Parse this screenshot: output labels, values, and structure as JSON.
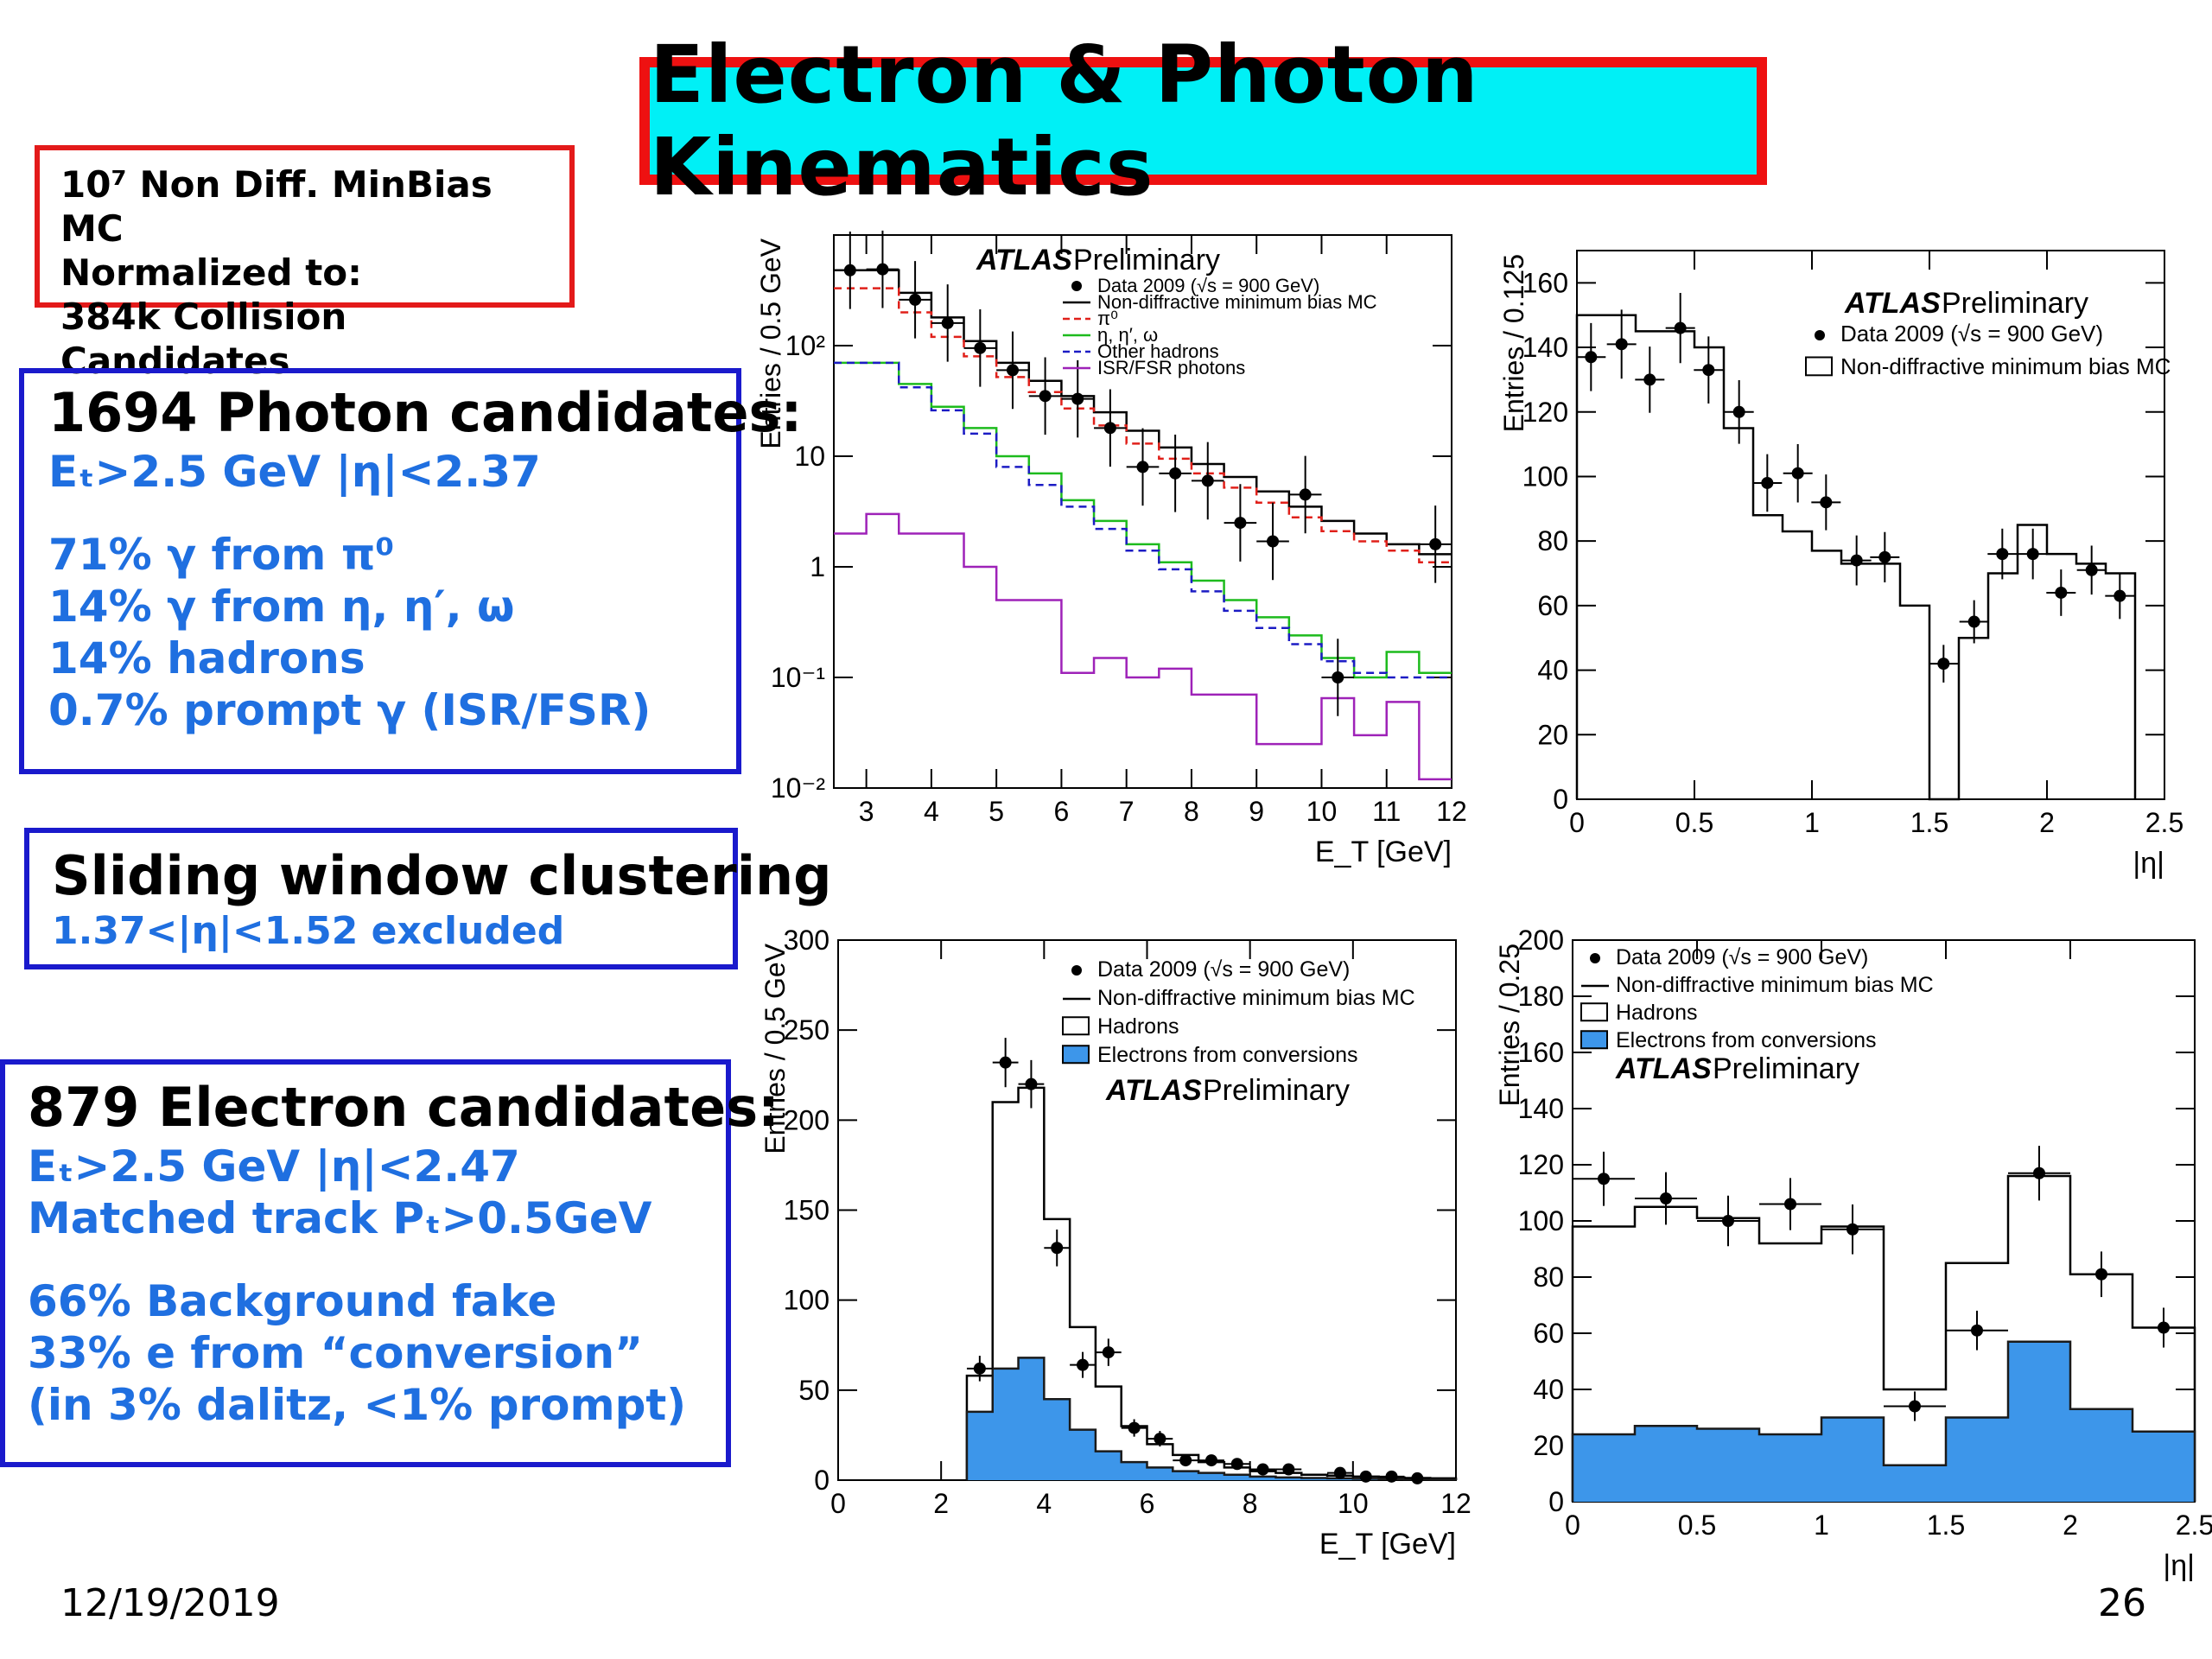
{
  "slide": {
    "title": "Electron & Photon Kinematics",
    "mc_note": [
      "10⁷ Non Diff. MinBias MC",
      "Normalized to:",
      "384k Collision Candidates"
    ],
    "photon_box": {
      "heading": "1694 Photon candidates:",
      "cut": "Eₜ>2.5 GeV |η|<2.37",
      "lines": [
        "71% γ from π⁰",
        "14% γ from η, η′, ω",
        "14% hadrons",
        "0.7% prompt γ (ISR/FSR)"
      ]
    },
    "sliding_box": {
      "heading": "Sliding window clustering",
      "note": "1.37<|η|<1.52 excluded"
    },
    "electron_box": {
      "heading": "879 Electron candidates:",
      "cut": "Eₜ>2.5 GeV |η|<2.47",
      "track": "Matched track Pₜ>0.5GeV",
      "lines": [
        "66% Background fake",
        "33% e from “conversion”",
        "(in 3% dalitz, <1% prompt)"
      ]
    },
    "date": "12/19/2019",
    "page_number": "26"
  },
  "colors": {
    "title_bg": "#00f0f6",
    "title_border": "#ee1111",
    "mc_border": "#e31a1a",
    "box_border": "#1a1acc",
    "blue_text": "#1f6fe0",
    "fill_conversions": "#3d96ea",
    "pi0": "#e0201a",
    "eta": "#1dbb1d",
    "other_hadrons": "#1c1cc4",
    "isr_fsr": "#9e22b8"
  },
  "chart_data": [
    {
      "id": "photon_et",
      "type": "line",
      "xlabel": "E_T [GeV]",
      "ylabel": "Entries / 0.5 GeV",
      "xlim": [
        2.5,
        12
      ],
      "ylim": [
        0.01,
        1000
      ],
      "ylog": true,
      "xticks": [
        "3",
        "4",
        "5",
        "6",
        "7",
        "8",
        "9",
        "10",
        "11",
        "12"
      ],
      "yticks": [
        "10⁻²",
        "10⁻¹",
        "1",
        "10",
        "10²"
      ],
      "annotation": [
        "ATLAS",
        "Preliminary"
      ],
      "legend": [
        "Data 2009 (√s = 900 GeV)",
        "Non-diffractive minimum bias MC",
        "π⁰",
        "η, η′, ω",
        "Other hadrons",
        "ISR/FSR photons"
      ],
      "bin_edges": [
        2.5,
        3,
        3.5,
        4,
        4.5,
        5,
        5.5,
        6,
        6.5,
        7,
        7.5,
        8,
        8.5,
        9,
        9.5,
        10,
        10.5,
        11,
        11.5,
        12
      ],
      "series": [
        {
          "name": "Non-diffractive minimum bias MC",
          "color": "#000000",
          "values": [
            480,
            480,
            300,
            180,
            110,
            70,
            48,
            35,
            25,
            17,
            12,
            8.5,
            6.5,
            4.8,
            3.5,
            2.6,
            2,
            1.6,
            1.3
          ]
        },
        {
          "name": "π⁰",
          "color": "#e0201a",
          "values": [
            330,
            330,
            200,
            120,
            80,
            52,
            38,
            27,
            19,
            13,
            9.5,
            7,
            5.2,
            3.8,
            2.8,
            2.1,
            1.7,
            1.4,
            1.1
          ]
        },
        {
          "name": "η, η′, ω",
          "color": "#1dbb1d",
          "values": [
            70,
            70,
            45,
            28,
            18,
            10,
            7,
            4,
            2.6,
            1.6,
            1.1,
            0.75,
            0.5,
            0.35,
            0.24,
            0.15,
            0.1,
            0.17,
            0.11
          ]
        },
        {
          "name": "Other hadrons",
          "color": "#1c1cc4",
          "values": [
            70,
            70,
            42,
            26,
            16,
            8,
            5.5,
            3.5,
            2.2,
            1.4,
            0.95,
            0.6,
            0.4,
            0.28,
            0.2,
            0.14,
            0.11,
            0.1,
            0.1
          ]
        },
        {
          "name": "ISR/FSR photons",
          "color": "#9e22b8",
          "values": [
            2,
            3,
            2,
            2,
            1,
            0.5,
            0.5,
            0.11,
            0.15,
            0.1,
            0.12,
            0.07,
            0.07,
            0.025,
            0.025,
            0.065,
            0.03,
            0.06,
            0.012
          ]
        }
      ],
      "data_points": {
        "x": [
          2.75,
          3.25,
          3.75,
          4.25,
          4.75,
          5.25,
          5.75,
          6.25,
          6.75,
          7.25,
          7.75,
          8.25,
          8.75,
          9.25,
          9.75,
          10.25,
          11.75
        ],
        "y": [
          480,
          490,
          260,
          160,
          95,
          60,
          35,
          33,
          18,
          8,
          7,
          6,
          2.5,
          1.7,
          4.5,
          0.1,
          1.6
        ]
      }
    },
    {
      "id": "photon_eta",
      "type": "line",
      "xlabel": "|η|",
      "ylabel": "Entries / 0.125",
      "xlim": [
        0,
        2.5
      ],
      "ylim": [
        0,
        170
      ],
      "xticks": [
        "0",
        "0.5",
        "1",
        "1.5",
        "2",
        "2.5"
      ],
      "yticks": [
        "0",
        "20",
        "40",
        "60",
        "80",
        "100",
        "120",
        "140",
        "160"
      ],
      "annotation": [
        "ATLAS",
        "Preliminary"
      ],
      "legend": [
        "Data 2009 (√s = 900 GeV)",
        "Non-diffractive minimum bias MC"
      ],
      "bin_edges": [
        0,
        0.125,
        0.25,
        0.375,
        0.5,
        0.625,
        0.75,
        0.875,
        1,
        1.125,
        1.25,
        1.375,
        1.5,
        1.625,
        1.75,
        1.875,
        2,
        2.125,
        2.25,
        2.375
      ],
      "series": [
        {
          "name": "Non-diffractive minimum bias MC",
          "color": "#000000",
          "values": [
            150,
            150,
            145,
            145,
            140,
            115,
            88,
            83,
            77,
            73,
            73,
            60,
            0,
            50,
            70,
            85,
            76,
            73,
            70
          ]
        }
      ],
      "data_points": {
        "x": [
          0.06,
          0.19,
          0.31,
          0.44,
          0.56,
          0.69,
          0.81,
          0.94,
          1.06,
          1.19,
          1.31,
          1.56,
          1.69,
          1.81,
          1.94,
          2.06,
          2.19,
          2.31
        ],
        "y": [
          137,
          141,
          130,
          146,
          133,
          120,
          98,
          101,
          92,
          74,
          75,
          42,
          55,
          76,
          76,
          64,
          71,
          63
        ]
      }
    },
    {
      "id": "electron_et",
      "type": "line",
      "xlabel": "E_T [GeV]",
      "ylabel": "Entries / 0.5 GeV",
      "xlim": [
        0,
        12
      ],
      "ylim": [
        0,
        300
      ],
      "xticks": [
        "0",
        "2",
        "4",
        "6",
        "8",
        "10",
        "12"
      ],
      "yticks": [
        "0",
        "50",
        "100",
        "150",
        "200",
        "250",
        "300"
      ],
      "annotation": [
        "ATLAS",
        "Preliminary"
      ],
      "legend": [
        "Data 2009 (√s = 900 GeV)",
        "Non-diffractive minimum bias MC",
        "Hadrons",
        "Electrons from conversions"
      ],
      "bin_edges": [
        2.5,
        3,
        3.5,
        4,
        4.5,
        5,
        5.5,
        6,
        6.5,
        7,
        7.5,
        8,
        8.5,
        9,
        9.5,
        10,
        10.5,
        11,
        11.5,
        12
      ],
      "series": [
        {
          "name": "Non-diffractive minimum bias MC",
          "color": "#000000",
          "values": [
            58,
            210,
            218,
            145,
            85,
            52,
            30,
            20,
            14,
            10,
            7,
            5,
            4,
            3,
            2.5,
            2,
            1.5,
            1.2,
            1
          ]
        },
        {
          "name": "Electrons from conversions",
          "color": "#3d96ea",
          "values": [
            38,
            62,
            68,
            45,
            28,
            16,
            10,
            7,
            5,
            4,
            3,
            2,
            1.5,
            1.2,
            1,
            0.8,
            0.6,
            0.5,
            0.4
          ]
        }
      ],
      "data_points": {
        "x": [
          2.75,
          3.25,
          3.75,
          4.25,
          4.75,
          5.25,
          5.75,
          6.25,
          6.75,
          7.25,
          7.75,
          8.25,
          8.75,
          9.75,
          10.25,
          10.75,
          11.25
        ],
        "y": [
          62,
          232,
          220,
          129,
          64,
          71,
          29,
          23,
          11,
          11,
          9,
          6,
          6,
          4,
          2,
          2,
          1
        ]
      }
    },
    {
      "id": "electron_eta",
      "type": "line",
      "xlabel": "|η|",
      "ylabel": "Entries / 0.25",
      "xlim": [
        0,
        2.5
      ],
      "ylim": [
        0,
        200
      ],
      "xticks": [
        "0",
        "0.5",
        "1",
        "1.5",
        "2",
        "2.5"
      ],
      "yticks": [
        "0",
        "20",
        "40",
        "60",
        "80",
        "100",
        "120",
        "140",
        "160",
        "180",
        "200"
      ],
      "annotation": [
        "ATLAS",
        "Preliminary"
      ],
      "legend": [
        "Data 2009 (√s = 900 GeV)",
        "Non-diffractive minimum bias MC",
        "Hadrons",
        "Electrons from conversions"
      ],
      "bin_edges": [
        0,
        0.25,
        0.5,
        0.75,
        1,
        1.25,
        1.5,
        1.75,
        2,
        2.25,
        2.5
      ],
      "series": [
        {
          "name": "Non-diffractive minimum bias MC",
          "color": "#000000",
          "values": [
            98,
            105,
            101,
            92,
            98,
            40,
            85,
            116,
            81,
            62
          ]
        },
        {
          "name": "Electrons from conversions",
          "color": "#3d96ea",
          "values": [
            24,
            27,
            26,
            24,
            30,
            13,
            30,
            57,
            33,
            25
          ]
        }
      ],
      "data_points": {
        "x": [
          0.125,
          0.375,
          0.625,
          0.875,
          1.125,
          1.375,
          1.625,
          1.875,
          2.125,
          2.375
        ],
        "y": [
          115,
          108,
          100,
          106,
          97,
          34,
          61,
          117,
          81,
          62
        ]
      }
    }
  ]
}
